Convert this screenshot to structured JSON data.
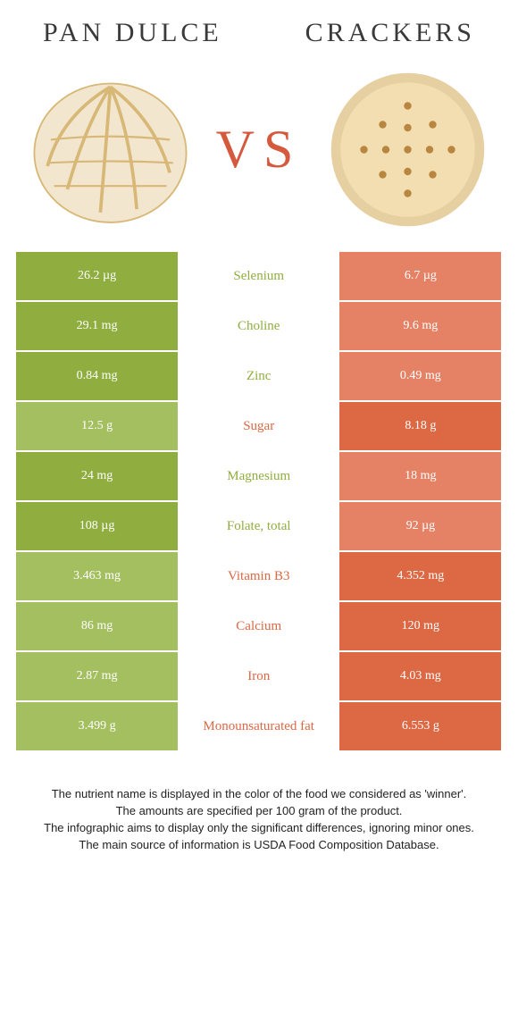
{
  "colors": {
    "left_winner": "#8fae3f",
    "left_loser": "#a4bf5f",
    "right_winner": "#dc6844",
    "right_loser": "#e58265",
    "mid_bg": "#ffffff"
  },
  "header": {
    "left_title": "Pan dulce",
    "right_title": "Crackers",
    "vs": "VS"
  },
  "rows": [
    {
      "nutrient": "Selenium",
      "left": "26.2 µg",
      "right": "6.7 µg",
      "winner": "left"
    },
    {
      "nutrient": "Choline",
      "left": "29.1 mg",
      "right": "9.6 mg",
      "winner": "left"
    },
    {
      "nutrient": "Zinc",
      "left": "0.84 mg",
      "right": "0.49 mg",
      "winner": "left"
    },
    {
      "nutrient": "Sugar",
      "left": "12.5 g",
      "right": "8.18 g",
      "winner": "right"
    },
    {
      "nutrient": "Magnesium",
      "left": "24 mg",
      "right": "18 mg",
      "winner": "left"
    },
    {
      "nutrient": "Folate, total",
      "left": "108 µg",
      "right": "92 µg",
      "winner": "left"
    },
    {
      "nutrient": "Vitamin B3",
      "left": "3.463 mg",
      "right": "4.352 mg",
      "winner": "right"
    },
    {
      "nutrient": "Calcium",
      "left": "86 mg",
      "right": "120 mg",
      "winner": "right"
    },
    {
      "nutrient": "Iron",
      "left": "2.87 mg",
      "right": "4.03 mg",
      "winner": "right"
    },
    {
      "nutrient": "Monounsaturated fat",
      "left": "3.499 g",
      "right": "6.553 g",
      "winner": "right"
    }
  ],
  "footnote": {
    "l1": "The nutrient name is displayed in the color of the food we considered as 'winner'.",
    "l2": "The amounts are specified per 100 gram of the product.",
    "l3": "The infographic aims to display only the significant differences, ignoring minor ones.",
    "l4": "The main source of information is USDA Food Composition Database."
  }
}
